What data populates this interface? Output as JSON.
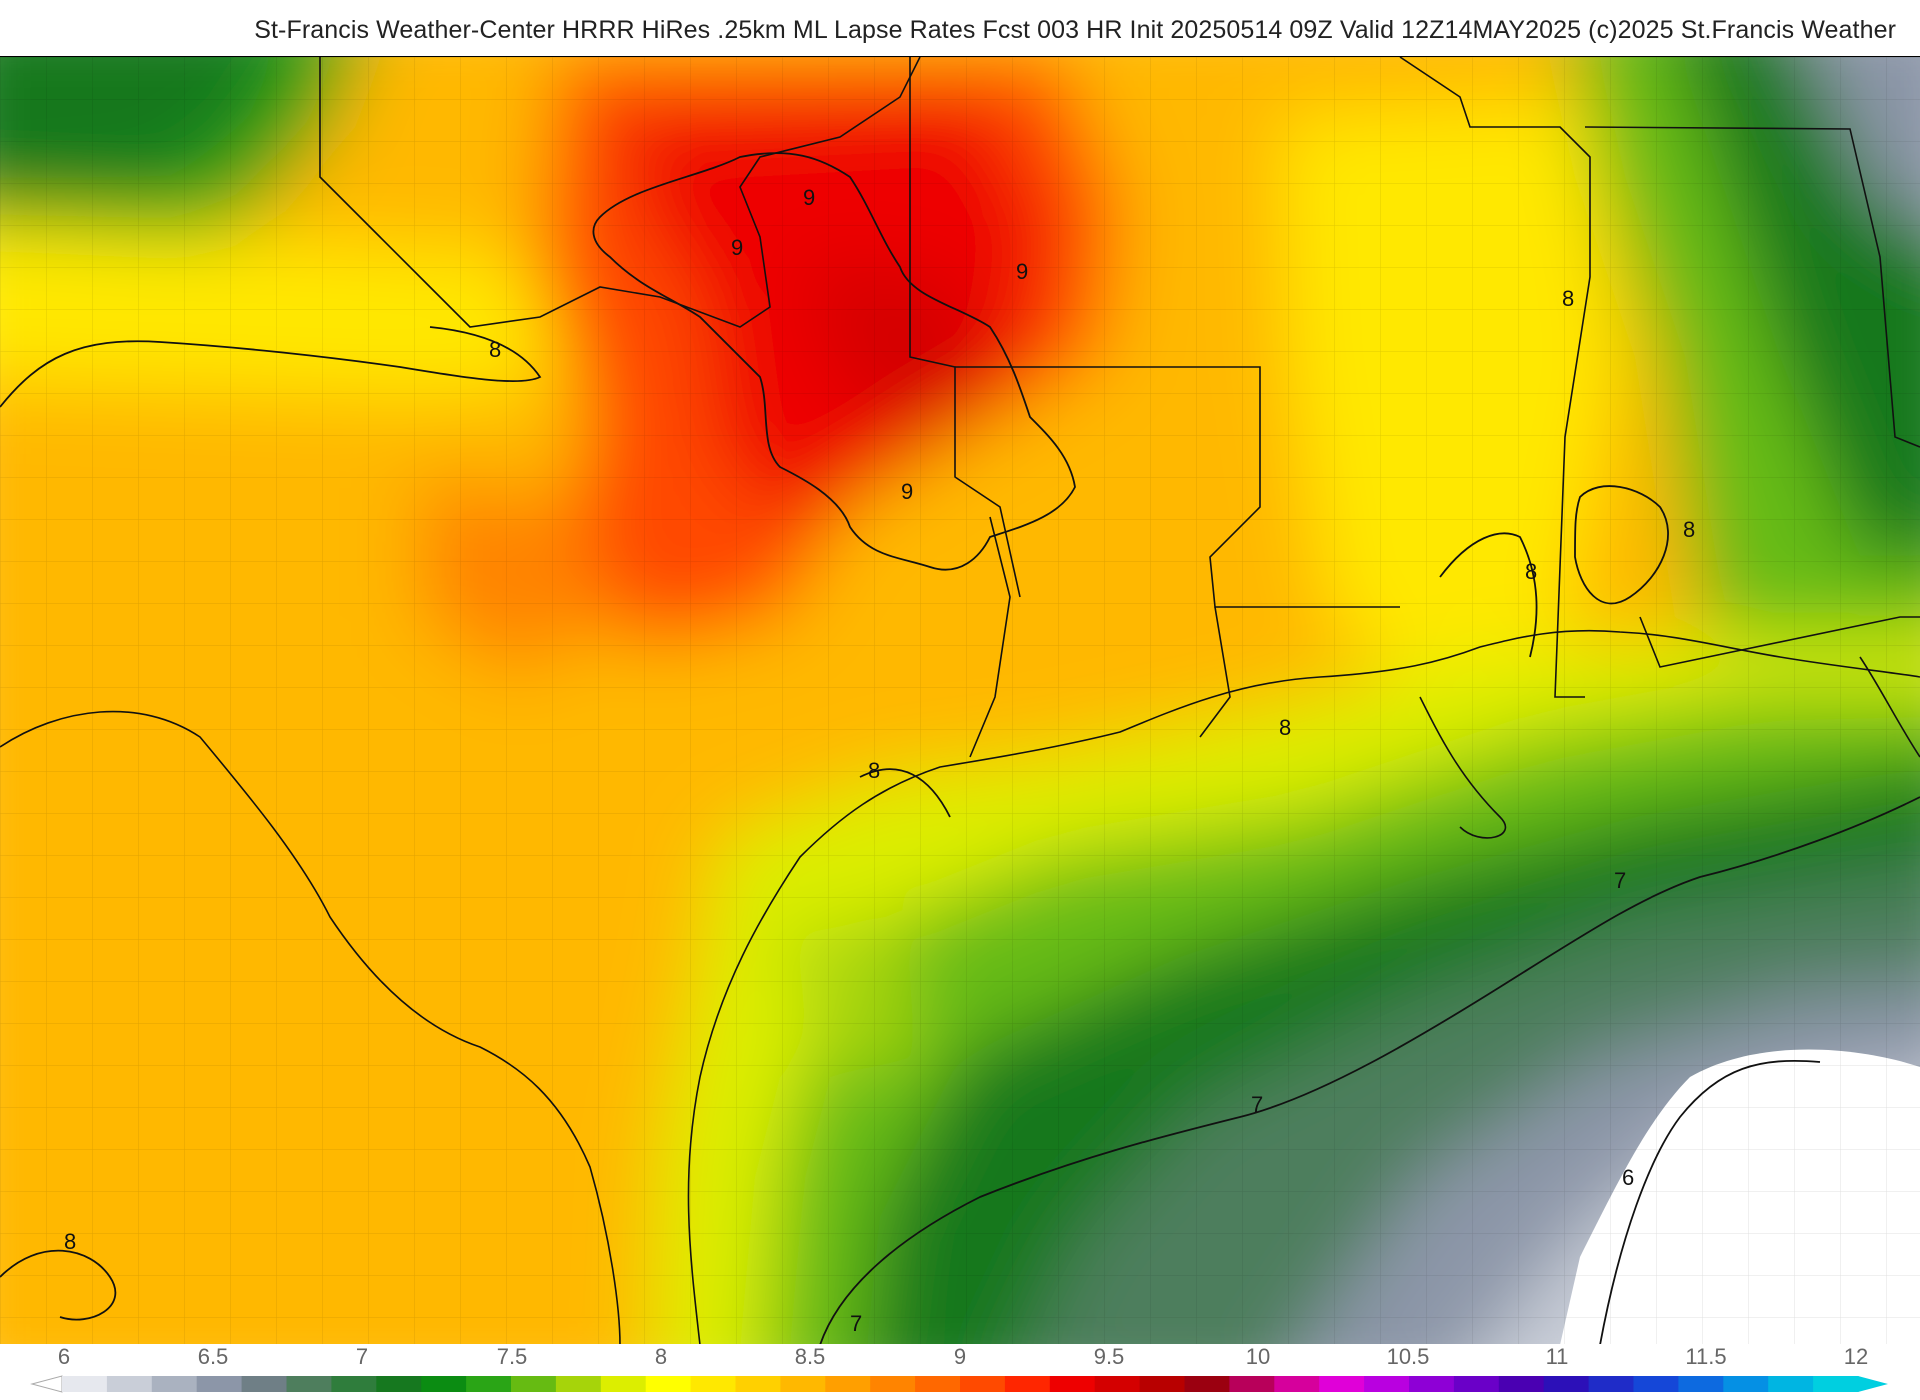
{
  "header": {
    "title": "St-Francis Weather-Center HRRR HiRes .25km ML Lapse Rates  Fcst 003 HR Init 20250514 09Z  Valid 12Z14MAY2025   (c)2025 St.Francis Weather"
  },
  "map": {
    "contour_labels": [
      "9",
      "9",
      "9",
      "9",
      "8",
      "8",
      "8",
      "8",
      "8",
      "8",
      "8",
      "7",
      "7",
      "7",
      "6"
    ]
  },
  "colorbar": {
    "tick_labels": [
      "6",
      "6.5",
      "7",
      "7.5",
      "8",
      "8.5",
      "9",
      "9.5",
      "10",
      "10.5",
      "11",
      "11.5",
      "12"
    ],
    "colors": [
      "#e6e8ee",
      "#c9ced8",
      "#aab2c0",
      "#8c96a8",
      "#6f7f86",
      "#4e7e5d",
      "#2f7d3c",
      "#16781f",
      "#0b8c12",
      "#2aa516",
      "#66bb12",
      "#a6d40a",
      "#dcee00",
      "#ffff00",
      "#ffe800",
      "#ffd000",
      "#ffb800",
      "#ff9f00",
      "#ff8400",
      "#ff6800",
      "#ff4a00",
      "#ff2600",
      "#ee0000",
      "#d40000",
      "#b80000",
      "#9b0010",
      "#b8005a",
      "#d6009c",
      "#e000d8",
      "#b900e0",
      "#8e00d6",
      "#6a00c8",
      "#4a00b2",
      "#2c10b8",
      "#1f2cc8",
      "#1547d8",
      "#0d6ae0",
      "#0590e4",
      "#00b5e2",
      "#00cfe0"
    ]
  }
}
